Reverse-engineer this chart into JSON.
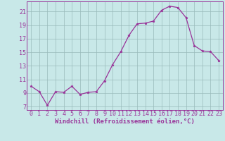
{
  "x": [
    0,
    1,
    2,
    3,
    4,
    5,
    6,
    7,
    8,
    9,
    10,
    11,
    12,
    13,
    14,
    15,
    16,
    17,
    18,
    19,
    20,
    21,
    22,
    23
  ],
  "y": [
    10.0,
    9.2,
    7.2,
    9.2,
    9.1,
    10.0,
    8.8,
    9.1,
    9.2,
    10.8,
    13.2,
    15.1,
    17.5,
    19.2,
    19.3,
    19.6,
    21.2,
    21.8,
    21.6,
    20.1,
    16.0,
    15.2,
    15.1,
    13.8
  ],
  "line_color": "#993399",
  "marker": "*",
  "bg_color": "#c8e8e8",
  "grid_color": "#99bbbb",
  "xlabel": "Windchill (Refroidissement éolien,°C)",
  "xlim": [
    -0.5,
    23.5
  ],
  "ylim": [
    6.5,
    22.5
  ],
  "yticks": [
    7,
    9,
    11,
    13,
    15,
    17,
    19,
    21
  ],
  "xticks": [
    0,
    1,
    2,
    3,
    4,
    5,
    6,
    7,
    8,
    9,
    10,
    11,
    12,
    13,
    14,
    15,
    16,
    17,
    18,
    19,
    20,
    21,
    22,
    23
  ],
  "axis_color": "#993399",
  "tick_color": "#993399",
  "label_fontsize": 6.5,
  "tick_fontsize": 6.0
}
